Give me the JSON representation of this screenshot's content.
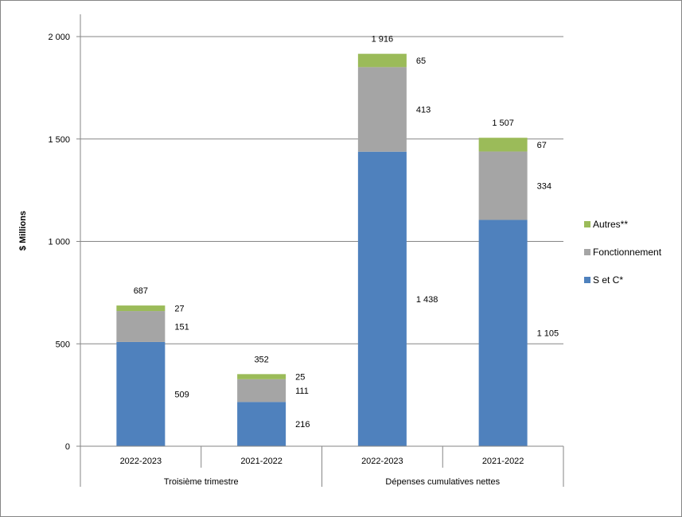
{
  "chart_data": {
    "type": "bar",
    "stacked": true,
    "ylabel": "$ Millions",
    "ylim": [
      0,
      2000
    ],
    "yticks": [
      0,
      500,
      1000,
      1500,
      2000
    ],
    "ytick_labels": [
      "0",
      "500",
      "1 000",
      "1 500",
      "2 000"
    ],
    "grid": true,
    "legend_position": "right",
    "categories": [
      "2022-2023",
      "2021-2022",
      "2022-2023",
      "2021-2022"
    ],
    "groups": [
      {
        "label": "Troisième trimestre",
        "span": [
          0,
          1
        ]
      },
      {
        "label": "Dépenses cumulatives nettes",
        "span": [
          2,
          3
        ]
      }
    ],
    "series": [
      {
        "name": "S et C*",
        "color": "#4f81bd",
        "values": [
          509,
          216,
          1438,
          1105
        ],
        "labels": [
          "509",
          "216",
          "1 438",
          "1 105"
        ]
      },
      {
        "name": "Fonctionnement",
        "color": "#a5a5a5",
        "values": [
          151,
          111,
          413,
          334
        ],
        "labels": [
          "151",
          "111",
          "413",
          "334"
        ]
      },
      {
        "name": "Autres**",
        "color": "#9bbb59",
        "values": [
          27,
          25,
          65,
          67
        ],
        "labels": [
          "27",
          "25",
          "65",
          "67"
        ]
      }
    ],
    "totals": [
      687,
      352,
      1916,
      1507
    ],
    "total_labels": [
      "687",
      "352",
      "1 916",
      "1 507"
    ]
  }
}
